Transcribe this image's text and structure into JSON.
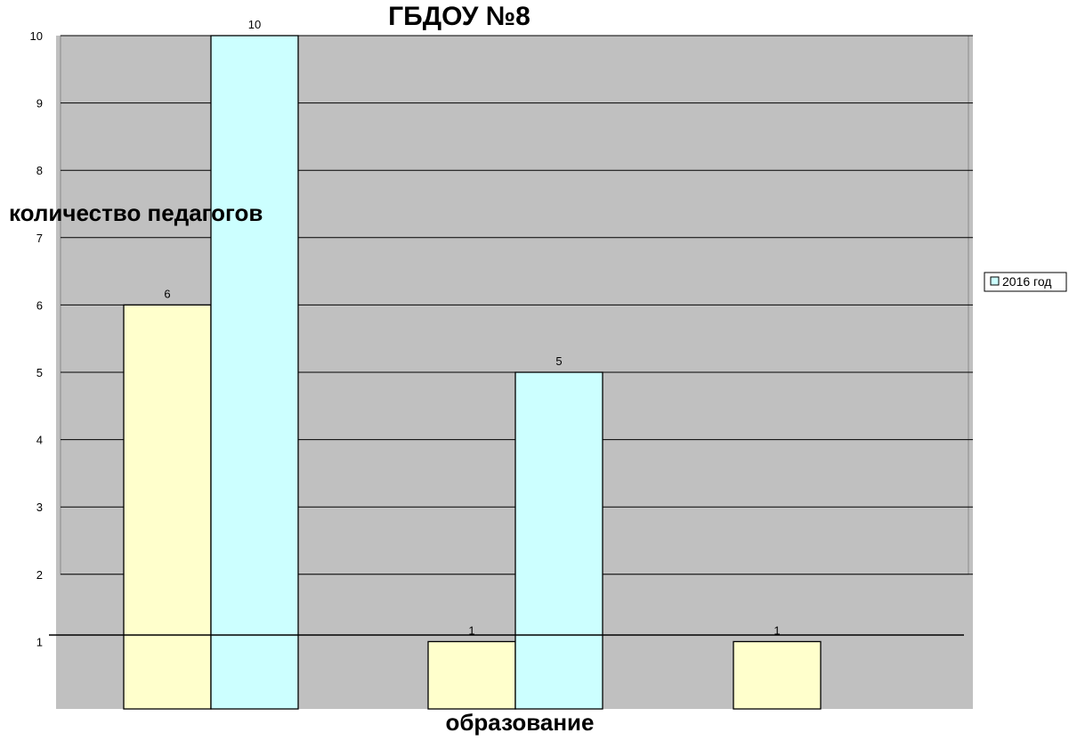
{
  "chart_data": {
    "type": "bar",
    "title": "ГБДОУ №8",
    "xlabel": "образование",
    "ylabel": "количество педагогов",
    "categories": [
      "",
      "",
      ""
    ],
    "series": [
      {
        "name": "",
        "color": "#ffffcc",
        "values": [
          6,
          1,
          1
        ],
        "labels": [
          "6",
          "1",
          "1"
        ]
      },
      {
        "name": "2016 год",
        "color": "#ccffff",
        "values": [
          10,
          5,
          0
        ],
        "labels": [
          "10",
          "5",
          ""
        ]
      }
    ],
    "y_ticks": [
      1,
      2,
      3,
      4,
      5,
      6,
      7,
      8,
      9,
      10
    ],
    "ylim": [
      0,
      10
    ],
    "grid": true,
    "legend_position": "right",
    "plot_background": "#c0c0c0"
  }
}
